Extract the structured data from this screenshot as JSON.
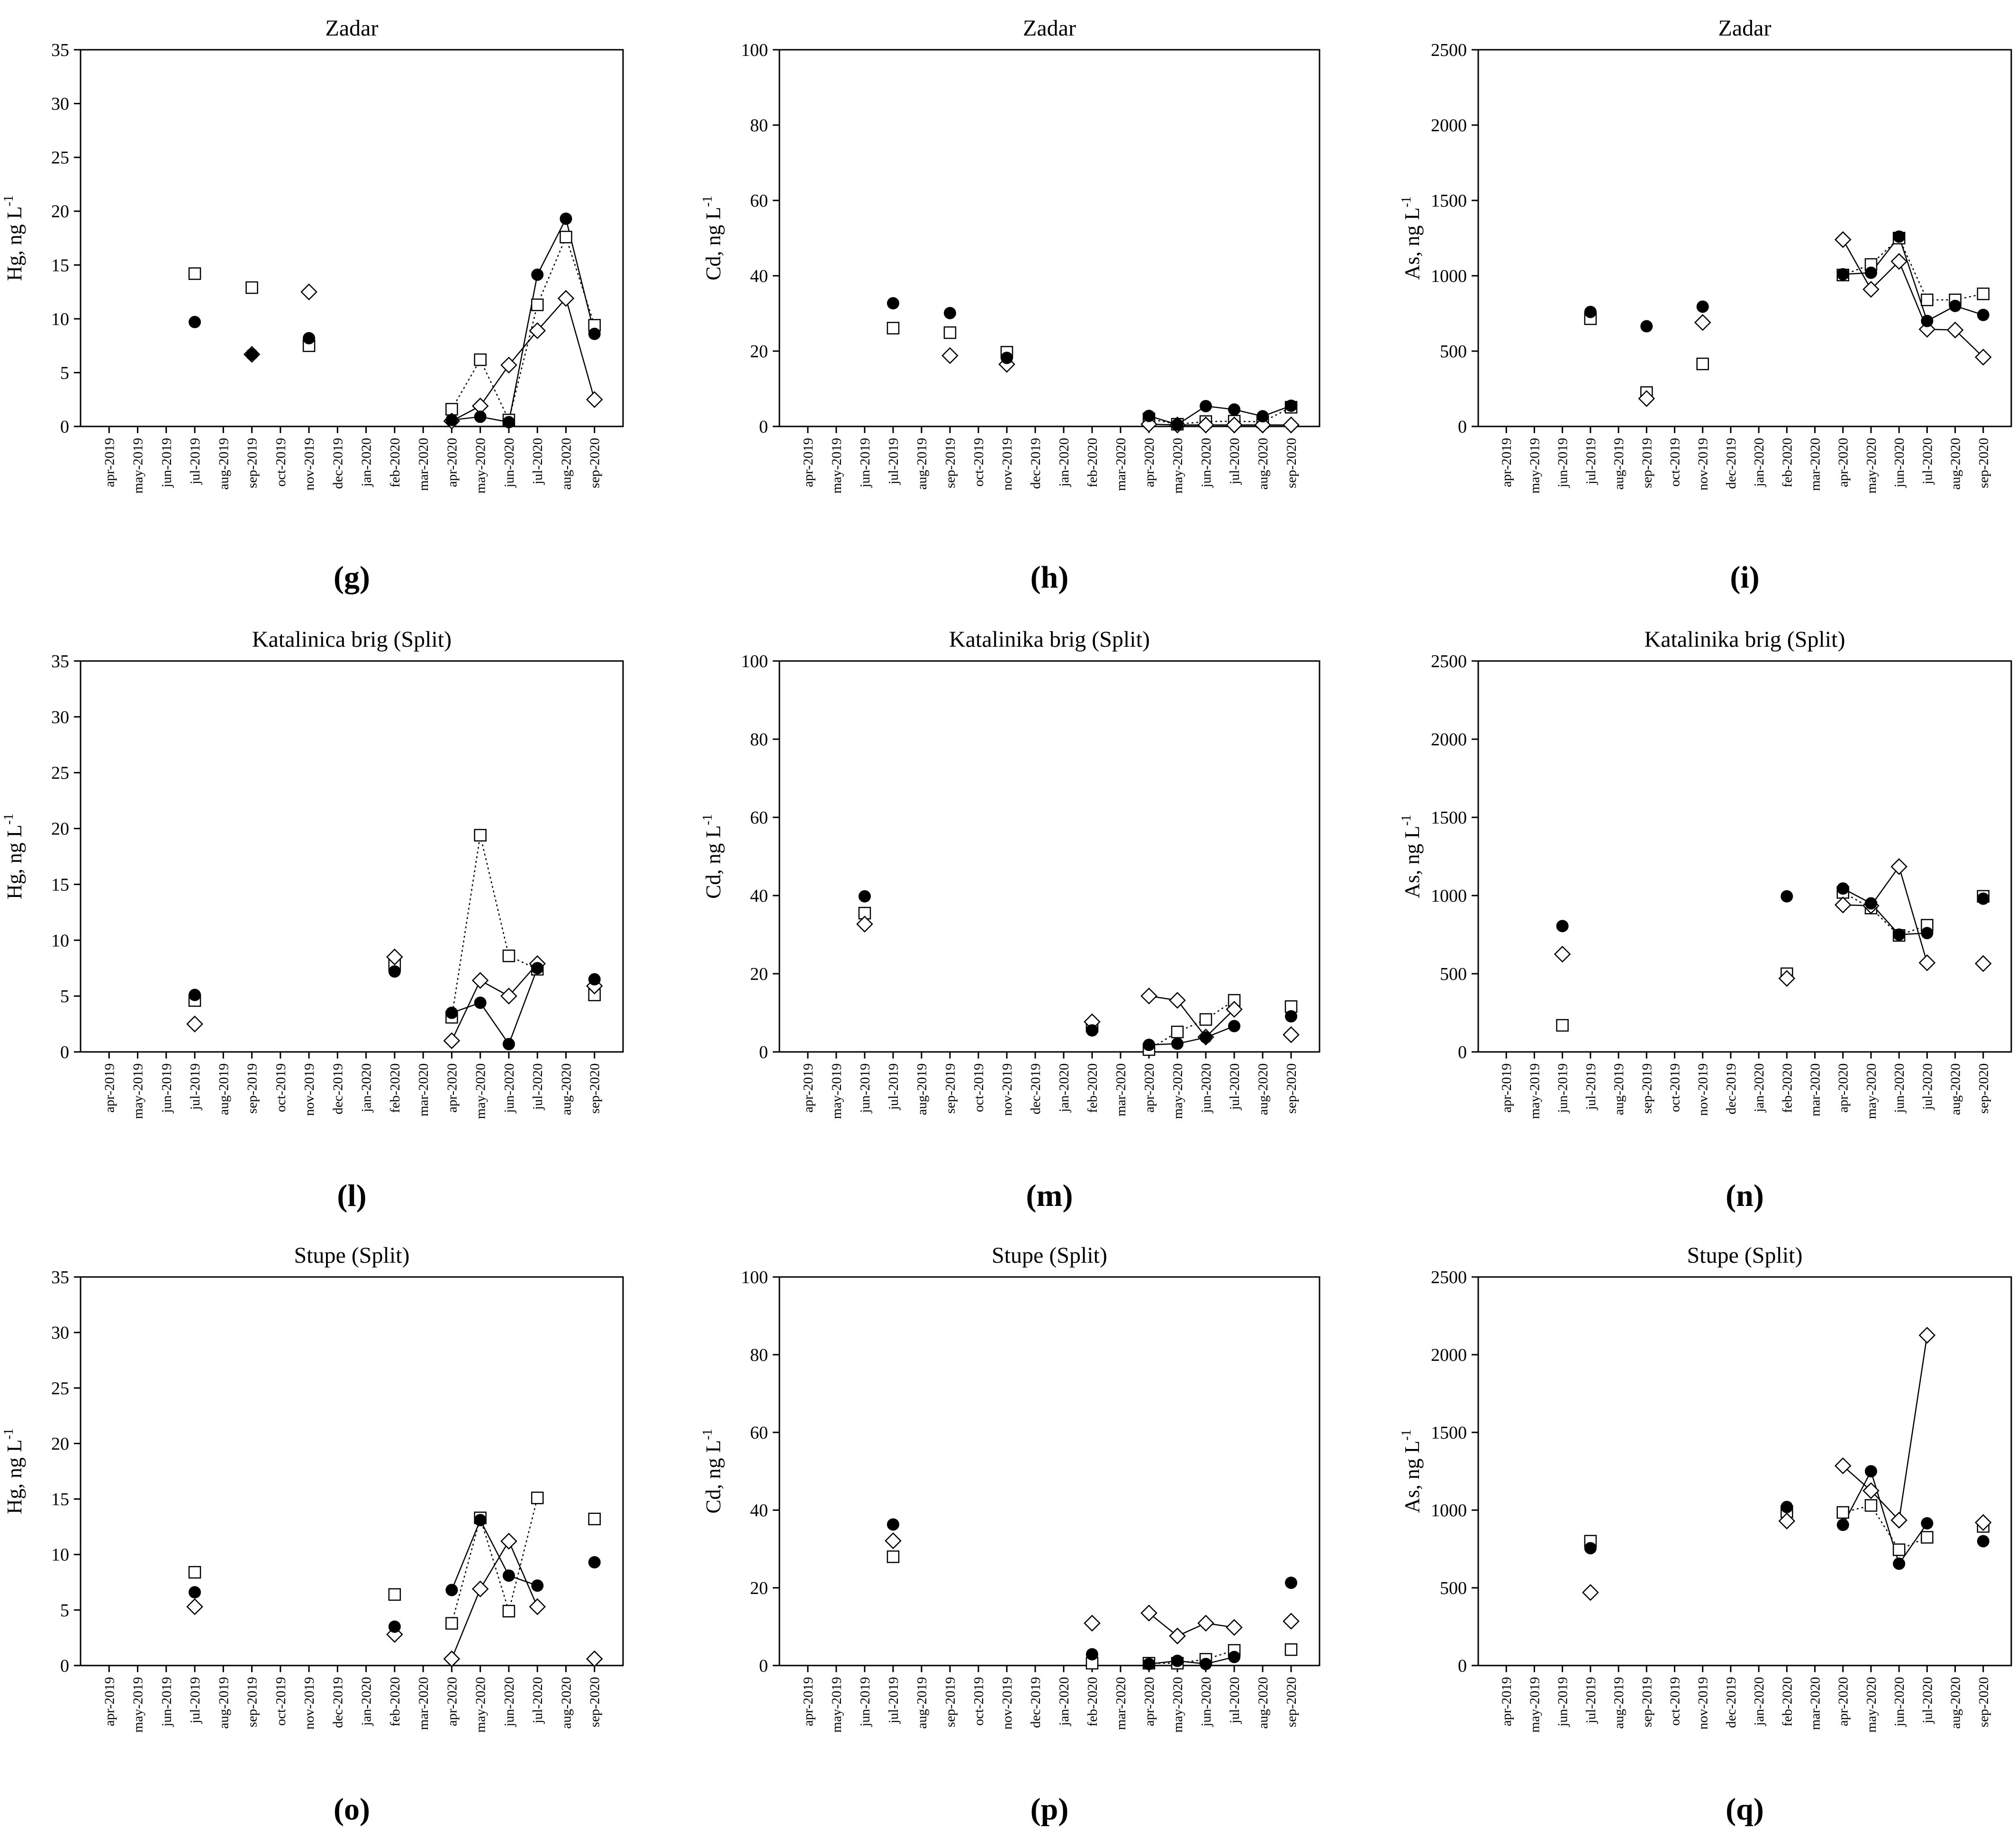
{
  "chart_data": [
    {
      "id": "g",
      "type": "scatter",
      "panel_label": "(g)",
      "title": "Zadar",
      "ylabel": {
        "element": "Hg",
        "unit": ", ng L",
        "exponent": "-1"
      },
      "ylim": [
        0,
        35
      ],
      "yticks": [
        0,
        5,
        10,
        15,
        20,
        25,
        30,
        35
      ],
      "categories": [
        "apr-2019",
        "may-2019",
        "jun-2019",
        "jul-2019",
        "aug-2019",
        "sep-2019",
        "oct-2019",
        "nov-2019",
        "dec-2019",
        "jan-2020",
        "feb-2020",
        "mar-2020",
        "apr-2020",
        "may-2020",
        "jun-2020",
        "jul-2020",
        "aug-2020",
        "sep-2020"
      ],
      "series": [
        {
          "name": "filled circles",
          "marker": "circle",
          "line": "solid",
          "values": [
            null,
            null,
            null,
            9.7,
            null,
            6.7,
            null,
            8.2,
            null,
            null,
            null,
            null,
            0.6,
            0.9,
            0.4,
            14.1,
            19.3,
            8.6
          ]
        },
        {
          "name": "open squares",
          "marker": "square",
          "line": "dotted",
          "values": [
            null,
            null,
            null,
            14.2,
            null,
            12.9,
            null,
            7.5,
            null,
            null,
            null,
            null,
            1.6,
            6.2,
            0.6,
            11.3,
            17.6,
            9.4
          ]
        },
        {
          "name": "open diamonds",
          "marker": "diamond",
          "line": "solid",
          "values": [
            null,
            null,
            null,
            null,
            null,
            6.7,
            null,
            12.5,
            null,
            null,
            null,
            null,
            0.5,
            1.9,
            5.7,
            8.9,
            11.9,
            2.5
          ]
        }
      ]
    },
    {
      "id": "h",
      "type": "scatter",
      "panel_label": "(h)",
      "title": "Zadar",
      "ylabel": {
        "element": "Cd",
        "unit": ", ng L",
        "exponent": "-1"
      },
      "ylim": [
        0,
        100
      ],
      "yticks": [
        0,
        20,
        40,
        60,
        80,
        100
      ],
      "categories": [
        "apr-2019",
        "may-2019",
        "jun-2019",
        "jul-2019",
        "aug-2019",
        "sep-2019",
        "oct-2019",
        "nov-2019",
        "dec-2019",
        "jan-2020",
        "feb-2020",
        "mar-2020",
        "apr-2020",
        "may-2020",
        "jun-2020",
        "jul-2020",
        "aug-2020",
        "sep-2020"
      ],
      "series": [
        {
          "name": "filled circles",
          "marker": "circle",
          "line": "solid",
          "values": [
            null,
            null,
            null,
            32.7,
            null,
            30.1,
            null,
            18.2,
            null,
            null,
            null,
            null,
            2.8,
            0.5,
            5.4,
            4.5,
            2.7,
            5.5
          ]
        },
        {
          "name": "open squares",
          "marker": "square",
          "line": "dotted",
          "values": [
            null,
            null,
            null,
            26.1,
            null,
            24.9,
            null,
            19.7,
            null,
            null,
            null,
            null,
            2.0,
            0.6,
            1.3,
            1.4,
            1.2,
            5.1
          ]
        },
        {
          "name": "open diamonds",
          "marker": "diamond",
          "line": "solid",
          "values": [
            null,
            null,
            null,
            null,
            null,
            18.8,
            null,
            16.5,
            null,
            null,
            null,
            null,
            0.6,
            0.4,
            0.4,
            0.4,
            0.4,
            0.4
          ]
        }
      ]
    },
    {
      "id": "i",
      "type": "scatter",
      "panel_label": "(i)",
      "title": "Zadar",
      "ylabel": {
        "element": "As",
        "unit": ", ng L",
        "exponent": "-1"
      },
      "ylim": [
        0,
        2500
      ],
      "yticks": [
        0,
        500,
        1000,
        1500,
        2000,
        2500
      ],
      "categories": [
        "apr-2019",
        "may-2019",
        "jun-2019",
        "jul-2019",
        "aug-2019",
        "sep-2019",
        "oct-2019",
        "nov-2019",
        "dec-2019",
        "jan-2020",
        "feb-2020",
        "mar-2020",
        "apr-2020",
        "may-2020",
        "jun-2020",
        "jul-2020",
        "aug-2020",
        "sep-2020"
      ],
      "series": [
        {
          "name": "filled circles",
          "marker": "circle",
          "line": "solid",
          "values": [
            null,
            null,
            null,
            760,
            null,
            665,
            null,
            795,
            null,
            null,
            null,
            null,
            1010,
            1020,
            1260,
            700,
            800,
            740
          ]
        },
        {
          "name": "open squares",
          "marker": "square",
          "line": "dotted",
          "values": [
            null,
            null,
            null,
            715,
            null,
            225,
            null,
            415,
            null,
            null,
            null,
            null,
            1005,
            1075,
            1250,
            840,
            840,
            880
          ]
        },
        {
          "name": "open diamonds",
          "marker": "diamond",
          "line": "solid",
          "values": [
            null,
            null,
            null,
            null,
            null,
            185,
            null,
            690,
            null,
            null,
            null,
            null,
            1240,
            910,
            1095,
            645,
            640,
            460
          ]
        }
      ]
    },
    {
      "id": "l",
      "type": "scatter",
      "panel_label": "(l)",
      "title": "Katalinica brig (Split)",
      "ylabel": {
        "element": "Hg",
        "unit": ", ng L",
        "exponent": "-1"
      },
      "ylim": [
        0,
        35
      ],
      "yticks": [
        0,
        5,
        10,
        15,
        20,
        25,
        30,
        35
      ],
      "categories": [
        "apr-2019",
        "may-2019",
        "jun-2019",
        "jul-2019",
        "aug-2019",
        "sep-2019",
        "oct-2019",
        "nov-2019",
        "dec-2019",
        "jan-2020",
        "feb-2020",
        "mar-2020",
        "apr-2020",
        "may-2020",
        "jun-2020",
        "jul-2020",
        "aug-2020",
        "sep-2020"
      ],
      "series": [
        {
          "name": "filled circles",
          "marker": "circle",
          "line": "solid",
          "values": [
            null,
            null,
            null,
            5.1,
            null,
            null,
            null,
            null,
            null,
            null,
            7.2,
            null,
            3.5,
            4.4,
            0.7,
            7.5,
            null,
            6.5
          ]
        },
        {
          "name": "open squares",
          "marker": "square",
          "line": "dotted",
          "values": [
            null,
            null,
            null,
            4.6,
            null,
            null,
            null,
            null,
            null,
            null,
            7.8,
            null,
            3.1,
            19.4,
            8.6,
            7.4,
            null,
            5.1
          ]
        },
        {
          "name": "open diamonds",
          "marker": "diamond",
          "line": "solid",
          "values": [
            null,
            null,
            null,
            2.5,
            null,
            null,
            null,
            null,
            null,
            null,
            8.5,
            null,
            1.0,
            6.4,
            5.0,
            7.9,
            null,
            5.9
          ]
        }
      ]
    },
    {
      "id": "m",
      "type": "scatter",
      "panel_label": "(m)",
      "title": "Katalinika brig (Split)",
      "ylabel": {
        "element": "Cd",
        "unit": ", ng L",
        "exponent": "-1"
      },
      "ylim": [
        0,
        100
      ],
      "yticks": [
        0,
        20,
        40,
        60,
        80,
        100
      ],
      "categories": [
        "apr-2019",
        "may-2019",
        "jun-2019",
        "jul-2019",
        "aug-2019",
        "sep-2019",
        "oct-2019",
        "nov-2019",
        "dec-2019",
        "jan-2020",
        "feb-2020",
        "mar-2020",
        "apr-2020",
        "may-2020",
        "jun-2020",
        "jul-2020",
        "aug-2020",
        "sep-2020"
      ],
      "series": [
        {
          "name": "filled circles",
          "marker": "circle",
          "line": "solid",
          "values": [
            null,
            null,
            39.8,
            null,
            null,
            null,
            null,
            null,
            null,
            null,
            5.5,
            null,
            1.8,
            2.1,
            3.7,
            6.6,
            null,
            9.1
          ]
        },
        {
          "name": "open squares",
          "marker": "square",
          "line": "dotted",
          "values": [
            null,
            null,
            35.5,
            null,
            null,
            null,
            null,
            null,
            null,
            null,
            6.6,
            null,
            0.6,
            5.1,
            8.3,
            13.2,
            null,
            11.6
          ]
        },
        {
          "name": "open diamonds",
          "marker": "diamond",
          "line": "solid",
          "values": [
            null,
            null,
            32.7,
            null,
            null,
            null,
            null,
            null,
            null,
            null,
            7.7,
            null,
            14.3,
            13.2,
            3.8,
            10.9,
            null,
            4.4
          ]
        }
      ]
    },
    {
      "id": "n",
      "type": "scatter",
      "panel_label": "(n)",
      "title": "Katalinika brig (Split)",
      "ylabel": {
        "element": "As",
        "unit": ", ng L",
        "exponent": "-1"
      },
      "ylim": [
        0,
        2500
      ],
      "yticks": [
        0,
        500,
        1000,
        1500,
        2000,
        2500
      ],
      "categories": [
        "apr-2019",
        "may-2019",
        "jun-2019",
        "jul-2019",
        "aug-2019",
        "sep-2019",
        "oct-2019",
        "nov-2019",
        "dec-2019",
        "jan-2020",
        "feb-2020",
        "mar-2020",
        "apr-2020",
        "may-2020",
        "jun-2020",
        "jul-2020",
        "aug-2020",
        "sep-2020"
      ],
      "series": [
        {
          "name": "filled circles",
          "marker": "circle",
          "line": "solid",
          "values": [
            null,
            null,
            805,
            null,
            null,
            null,
            null,
            null,
            null,
            null,
            995,
            null,
            1045,
            950,
            750,
            760,
            null,
            980
          ]
        },
        {
          "name": "open squares",
          "marker": "square",
          "line": "dotted",
          "values": [
            null,
            null,
            170,
            null,
            null,
            null,
            null,
            null,
            null,
            null,
            500,
            null,
            1020,
            920,
            745,
            810,
            null,
            995
          ]
        },
        {
          "name": "open diamonds",
          "marker": "diamond",
          "line": "solid",
          "values": [
            null,
            null,
            625,
            null,
            null,
            null,
            null,
            null,
            null,
            null,
            470,
            null,
            940,
            935,
            1185,
            570,
            null,
            565
          ]
        }
      ]
    },
    {
      "id": "o",
      "type": "scatter",
      "panel_label": "(o)",
      "title": "Stupe (Split)",
      "ylabel": {
        "element": "Hg",
        "unit": ", ng L",
        "exponent": "-1"
      },
      "ylim": [
        0,
        35
      ],
      "yticks": [
        0,
        5,
        10,
        15,
        20,
        25,
        30,
        35
      ],
      "categories": [
        "apr-2019",
        "may-2019",
        "jun-2019",
        "jul-2019",
        "aug-2019",
        "sep-2019",
        "oct-2019",
        "nov-2019",
        "dec-2019",
        "jan-2020",
        "feb-2020",
        "mar-2020",
        "apr-2020",
        "may-2020",
        "jun-2020",
        "jul-2020",
        "aug-2020",
        "sep-2020"
      ],
      "series": [
        {
          "name": "filled circles",
          "marker": "circle",
          "line": "solid",
          "values": [
            null,
            null,
            null,
            6.6,
            null,
            null,
            null,
            null,
            null,
            null,
            3.5,
            null,
            6.8,
            13.1,
            8.1,
            7.2,
            null,
            9.3
          ]
        },
        {
          "name": "open squares",
          "marker": "square",
          "line": "dotted",
          "values": [
            null,
            null,
            null,
            8.4,
            null,
            null,
            null,
            null,
            null,
            null,
            6.4,
            null,
            3.8,
            13.3,
            4.9,
            15.1,
            null,
            13.2
          ]
        },
        {
          "name": "open diamonds",
          "marker": "diamond",
          "line": "solid",
          "values": [
            null,
            null,
            null,
            5.3,
            null,
            null,
            null,
            null,
            null,
            null,
            2.8,
            null,
            0.6,
            6.9,
            11.2,
            5.3,
            null,
            0.6
          ]
        }
      ]
    },
    {
      "id": "p",
      "type": "scatter",
      "panel_label": "(p)",
      "title": "Stupe (Split)",
      "ylabel": {
        "element": "Cd",
        "unit": ", ng L",
        "exponent": "-1"
      },
      "ylim": [
        0,
        100
      ],
      "yticks": [
        0,
        20,
        40,
        60,
        80,
        100
      ],
      "categories": [
        "apr-2019",
        "may-2019",
        "jun-2019",
        "jul-2019",
        "aug-2019",
        "sep-2019",
        "oct-2019",
        "nov-2019",
        "dec-2019",
        "jan-2020",
        "feb-2020",
        "mar-2020",
        "apr-2020",
        "may-2020",
        "jun-2020",
        "jul-2020",
        "aug-2020",
        "sep-2020"
      ],
      "series": [
        {
          "name": "filled circles",
          "marker": "circle",
          "line": "solid",
          "values": [
            null,
            null,
            null,
            36.3,
            null,
            null,
            null,
            null,
            null,
            null,
            2.9,
            null,
            0.4,
            1.2,
            0.4,
            2.2,
            null,
            21.3
          ]
        },
        {
          "name": "open squares",
          "marker": "square",
          "line": "dotted",
          "values": [
            null,
            null,
            null,
            28.0,
            null,
            null,
            null,
            null,
            null,
            null,
            0.6,
            null,
            0.6,
            0.6,
            1.6,
            3.9,
            null,
            4.1
          ]
        },
        {
          "name": "open diamonds",
          "marker": "diamond",
          "line": "solid",
          "values": [
            null,
            null,
            null,
            32.1,
            null,
            null,
            null,
            null,
            null,
            null,
            10.9,
            null,
            13.5,
            7.6,
            10.9,
            9.8,
            null,
            11.4
          ]
        }
      ]
    },
    {
      "id": "q",
      "type": "scatter",
      "panel_label": "(q)",
      "title": "Stupe (Split)",
      "ylabel": {
        "element": "As",
        "unit": ", ng L",
        "exponent": "-1"
      },
      "ylim": [
        0,
        2500
      ],
      "yticks": [
        0,
        500,
        1000,
        1500,
        2000,
        2500
      ],
      "categories": [
        "apr-2019",
        "may-2019",
        "jun-2019",
        "jul-2019",
        "aug-2019",
        "sep-2019",
        "oct-2019",
        "nov-2019",
        "dec-2019",
        "jan-2020",
        "feb-2020",
        "mar-2020",
        "apr-2020",
        "may-2020",
        "jun-2020",
        "jul-2020",
        "aug-2020",
        "sep-2020"
      ],
      "series": [
        {
          "name": "filled circles",
          "marker": "circle",
          "line": "solid",
          "values": [
            null,
            null,
            null,
            755,
            null,
            null,
            null,
            null,
            null,
            null,
            1020,
            null,
            905,
            1250,
            655,
            915,
            null,
            800
          ]
        },
        {
          "name": "open squares",
          "marker": "square",
          "line": "dotted",
          "values": [
            null,
            null,
            null,
            800,
            null,
            null,
            null,
            null,
            null,
            null,
            990,
            null,
            985,
            1030,
            745,
            825,
            null,
            895
          ]
        },
        {
          "name": "open diamonds",
          "marker": "diamond",
          "line": "solid",
          "values": [
            null,
            null,
            null,
            470,
            null,
            null,
            null,
            null,
            null,
            null,
            930,
            null,
            1285,
            1125,
            935,
            2125,
            null,
            920
          ]
        }
      ]
    }
  ]
}
